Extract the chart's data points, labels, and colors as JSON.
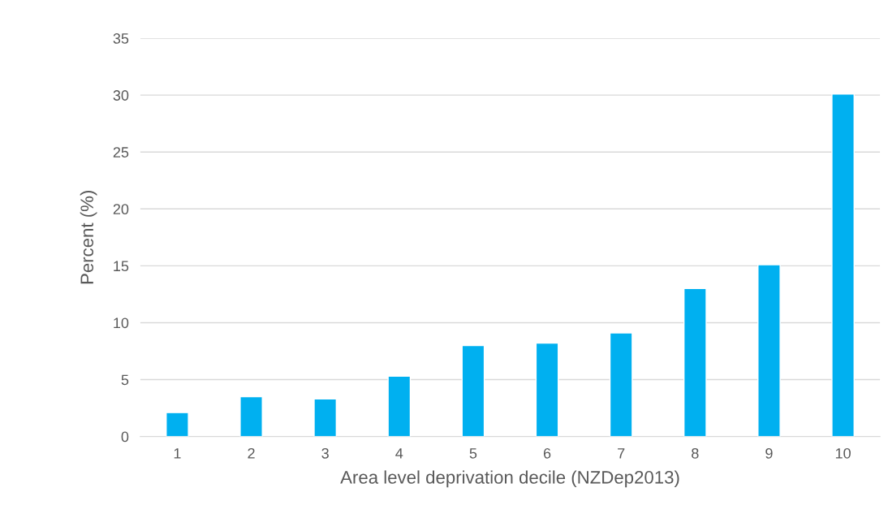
{
  "chart_data": {
    "type": "bar",
    "xlabel": "Area level deprivation decile (NZDep2013)",
    "ylabel": "Percent (%)",
    "categories": [
      "1",
      "2",
      "3",
      "4",
      "5",
      "6",
      "7",
      "8",
      "9",
      "10"
    ],
    "values": [
      2.1,
      3.5,
      3.3,
      5.3,
      8.0,
      8.2,
      9.1,
      13.0,
      15.1,
      30.1
    ],
    "color": "#00b0f0",
    "ylim": [
      0,
      35
    ],
    "yticks": [
      0,
      5,
      10,
      15,
      20,
      25,
      30,
      35
    ],
    "grid": "y",
    "legend": false
  }
}
